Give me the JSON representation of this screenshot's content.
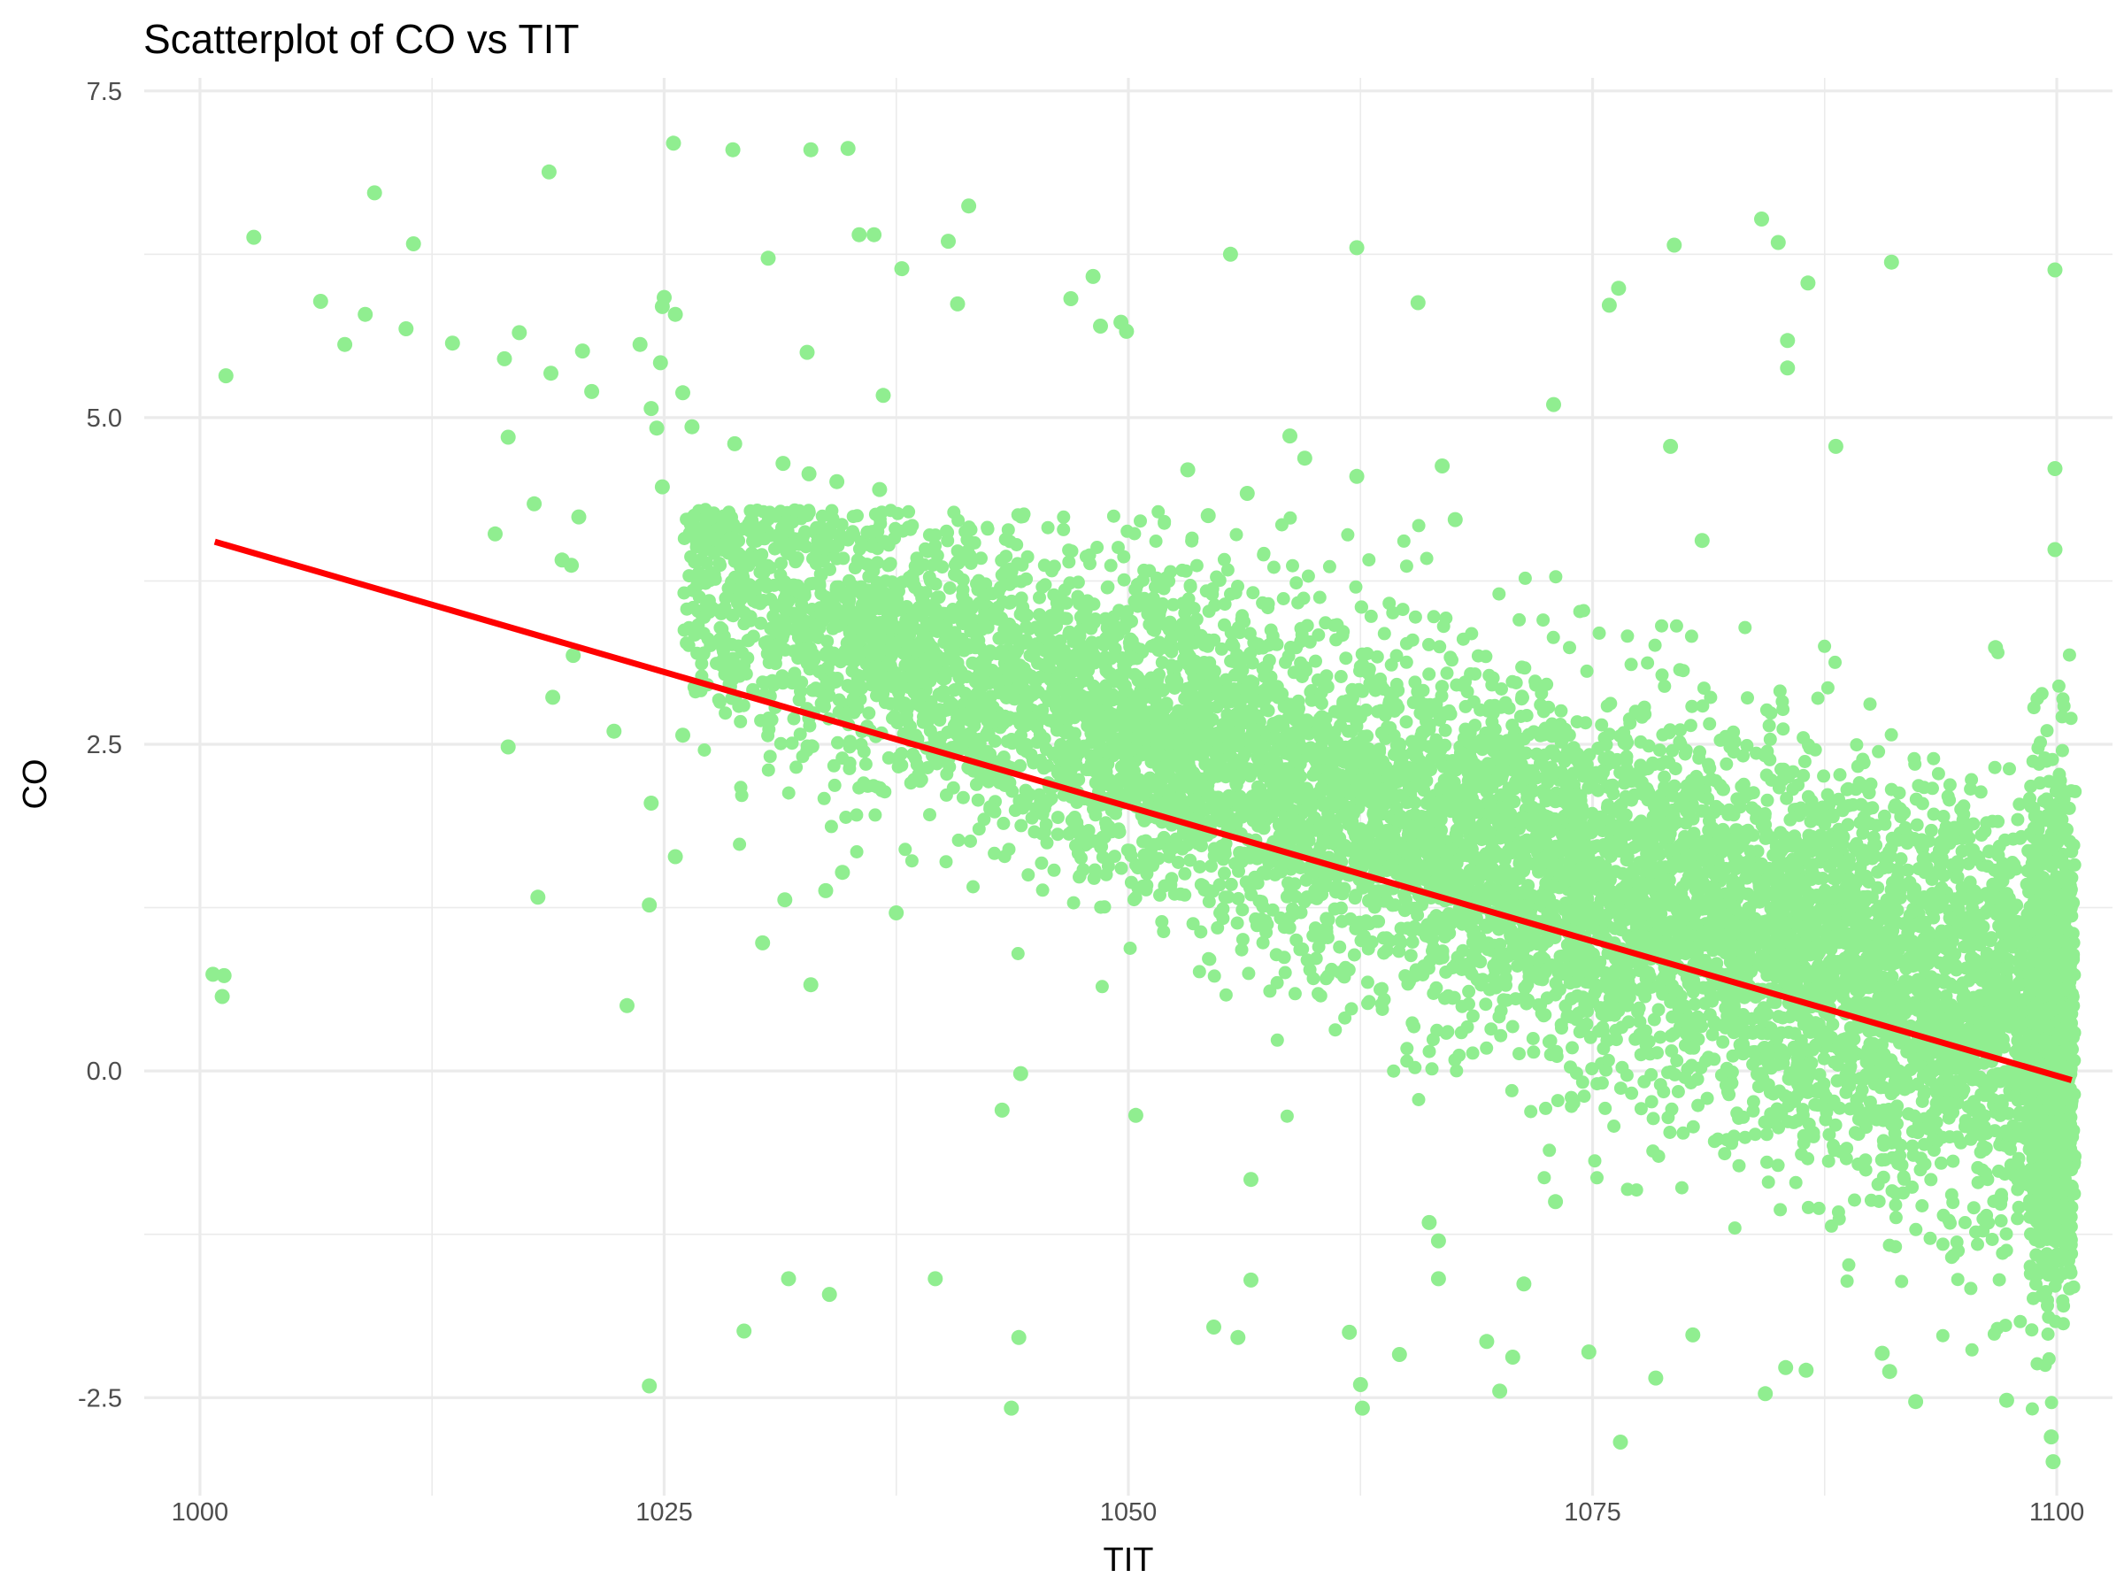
{
  "chart_data": {
    "type": "scatter",
    "title": "Scatterplot of CO vs TIT",
    "xlabel": "TIT",
    "ylabel": "CO",
    "xlim": [
      997,
      1103
    ],
    "ylim": [
      -3.25,
      7.6
    ],
    "x_ticks": [
      {
        "value": 1000,
        "label": "1000"
      },
      {
        "value": 1025,
        "label": "1025"
      },
      {
        "value": 1050,
        "label": "1050"
      },
      {
        "value": 1075,
        "label": "1075"
      },
      {
        "value": 1100,
        "label": "1100"
      }
    ],
    "y_ticks": [
      {
        "value": -2.5,
        "label": "-2.5"
      },
      {
        "value": 0,
        "label": "0.0"
      },
      {
        "value": 2.5,
        "label": "2.5"
      },
      {
        "value": 5,
        "label": "5.0"
      },
      {
        "value": 7.5,
        "label": "7.5"
      }
    ],
    "x_minor_gridlines": [
      1012.5,
      1037.5,
      1062.5,
      1087.5
    ],
    "y_minor_gridlines": [
      -1.25,
      1.25,
      3.75,
      6.25
    ],
    "grid": true,
    "legend": "none",
    "point_color": "#90EE90",
    "trend_color": "#FF0000",
    "background": "#FFFFFF",
    "gridline_color": "#EBEBEB",
    "trend_line": {
      "type": "linear_fit",
      "x": [
        1000.8,
        1100.8
      ],
      "y": [
        4.05,
        -0.07
      ]
    },
    "dense_cloud": {
      "note_points": "main concentrated band of points",
      "x_range": [
        1026,
        1101
      ],
      "center_line": {
        "x": [
          1026,
          1101
        ],
        "y": [
          3.8,
          0.2
        ]
      },
      "spread_sd": 0.55,
      "spread_growth_at_high_x": 0.5,
      "count": 9000
    },
    "series": [
      {
        "points": [
          [
            1000.7,
            0.74
          ],
          [
            1001.3,
            0.73
          ],
          [
            1001.2,
            0.57
          ],
          [
            1001.4,
            5.32
          ],
          [
            1002.9,
            6.38
          ],
          [
            1006.5,
            5.89
          ],
          [
            1007.8,
            5.56
          ],
          [
            1008.9,
            5.79
          ],
          [
            1009.4,
            6.72
          ],
          [
            1011.1,
            5.68
          ],
          [
            1011.5,
            6.33
          ],
          [
            1013.6,
            5.57
          ],
          [
            1016.4,
            5.45
          ],
          [
            1017.2,
            5.65
          ],
          [
            1015.9,
            4.11
          ],
          [
            1016.6,
            4.85
          ],
          [
            1016.6,
            2.48
          ],
          [
            1018.0,
            4.34
          ],
          [
            1018.2,
            1.33
          ],
          [
            1018.8,
            6.88
          ],
          [
            1018.9,
            5.34
          ],
          [
            1019.0,
            2.86
          ],
          [
            1020.6,
            5.51
          ],
          [
            1021.1,
            5.2
          ],
          [
            1020.4,
            4.24
          ],
          [
            1020.0,
            3.87
          ],
          [
            1019.5,
            3.91
          ],
          [
            1020.1,
            3.18
          ],
          [
            1022.3,
            2.6
          ],
          [
            1023.0,
            0.5
          ],
          [
            1023.7,
            5.56
          ],
          [
            1024.3,
            5.07
          ],
          [
            1024.8,
            5.42
          ],
          [
            1024.9,
            5.85
          ],
          [
            1025.0,
            5.92
          ],
          [
            1025.6,
            5.79
          ],
          [
            1025.5,
            7.1
          ],
          [
            1028.7,
            7.05
          ],
          [
            1032.9,
            7.05
          ],
          [
            1034.9,
            7.06
          ],
          [
            1030.6,
            6.22
          ],
          [
            1035.5,
            6.4
          ],
          [
            1036.3,
            6.4
          ],
          [
            1037.8,
            6.14
          ],
          [
            1040.3,
            6.35
          ],
          [
            1040.8,
            5.87
          ],
          [
            1041.4,
            6.62
          ],
          [
            1032.7,
            5.5
          ],
          [
            1036.8,
            5.17
          ],
          [
            1026.0,
            5.19
          ],
          [
            1026.5,
            4.93
          ],
          [
            1028.8,
            4.8
          ],
          [
            1031.4,
            4.65
          ],
          [
            1032.8,
            4.57
          ],
          [
            1034.3,
            4.51
          ],
          [
            1036.6,
            4.45
          ],
          [
            1024.9,
            4.47
          ],
          [
            1024.6,
            4.92
          ],
          [
            1025.6,
            1.64
          ],
          [
            1024.3,
            2.05
          ],
          [
            1024.2,
            1.27
          ],
          [
            1026.0,
            2.57
          ],
          [
            1031.5,
            1.31
          ],
          [
            1032.9,
            0.66
          ],
          [
            1030.3,
            0.98
          ],
          [
            1033.7,
            1.38
          ],
          [
            1034.6,
            1.52
          ],
          [
            1037.5,
            1.21
          ],
          [
            1046.9,
            5.91
          ],
          [
            1048.1,
            6.08
          ],
          [
            1048.5,
            5.7
          ],
          [
            1049.6,
            5.73
          ],
          [
            1049.9,
            5.66
          ],
          [
            1055.5,
            6.25
          ],
          [
            1062.3,
            6.3
          ],
          [
            1065.6,
            5.88
          ],
          [
            1053.2,
            4.6
          ],
          [
            1054.3,
            4.25
          ],
          [
            1056.4,
            4.42
          ],
          [
            1058.7,
            4.86
          ],
          [
            1059.5,
            4.69
          ],
          [
            1062.3,
            4.55
          ],
          [
            1066.9,
            4.63
          ],
          [
            1067.6,
            4.22
          ],
          [
            1072.9,
            5.1
          ],
          [
            1075.9,
            5.86
          ],
          [
            1076.4,
            5.99
          ],
          [
            1079.4,
            6.32
          ],
          [
            1079.2,
            4.78
          ],
          [
            1080.9,
            4.06
          ],
          [
            1084.1,
            6.52
          ],
          [
            1085.0,
            6.34
          ],
          [
            1085.5,
            5.59
          ],
          [
            1085.5,
            5.38
          ],
          [
            1086.6,
            6.03
          ],
          [
            1088.1,
            4.78
          ],
          [
            1091.1,
            6.19
          ],
          [
            1099.9,
            6.13
          ],
          [
            1099.9,
            4.61
          ],
          [
            1099.9,
            3.99
          ],
          [
            1096.7,
            3.24
          ],
          [
            1031.7,
            -1.59
          ],
          [
            1033.9,
            -1.71
          ],
          [
            1029.3,
            -1.99
          ],
          [
            1024.2,
            -2.41
          ],
          [
            1039.6,
            -1.59
          ],
          [
            1044.1,
            -2.04
          ],
          [
            1043.7,
            -2.58
          ],
          [
            1054.6,
            -1.96
          ],
          [
            1055.9,
            -2.04
          ],
          [
            1056.6,
            -1.6
          ],
          [
            1061.9,
            -2.0
          ],
          [
            1062.5,
            -2.4
          ],
          [
            1062.6,
            -2.58
          ],
          [
            1064.6,
            -2.17
          ],
          [
            1066.7,
            -1.59
          ],
          [
            1069.3,
            -2.07
          ],
          [
            1070.7,
            -2.19
          ],
          [
            1070.0,
            -2.45
          ],
          [
            1071.3,
            -1.63
          ],
          [
            1074.8,
            -2.15
          ],
          [
            1076.5,
            -2.84
          ],
          [
            1078.4,
            -2.35
          ],
          [
            1080.4,
            -2.02
          ],
          [
            1084.3,
            -2.47
          ],
          [
            1085.4,
            -2.27
          ],
          [
            1086.5,
            -2.29
          ],
          [
            1090.6,
            -2.16
          ],
          [
            1091.0,
            -2.3
          ],
          [
            1092.4,
            -2.53
          ],
          [
            1097.3,
            -2.52
          ],
          [
            1099.8,
            -2.99
          ],
          [
            1099.7,
            -2.8
          ],
          [
            1050.4,
            -0.34
          ],
          [
            1056.6,
            -0.83
          ],
          [
            1044.2,
            -0.02
          ],
          [
            1043.2,
            -0.3
          ],
          [
            1066.2,
            -1.16
          ],
          [
            1066.7,
            -1.3
          ],
          [
            1073.0,
            -1.0
          ]
        ]
      }
    ]
  }
}
